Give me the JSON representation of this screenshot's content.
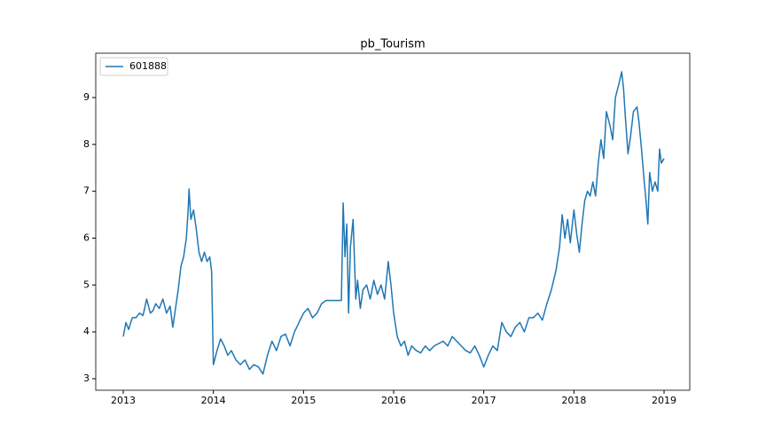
{
  "chart_data": {
    "type": "line",
    "title": "pb_Tourism",
    "x": [
      2013.0,
      2013.03,
      2013.06,
      2013.1,
      2013.14,
      2013.18,
      2013.22,
      2013.26,
      2013.3,
      2013.33,
      2013.36,
      2013.4,
      2013.44,
      2013.48,
      2013.52,
      2013.55,
      2013.58,
      2013.61,
      2013.64,
      2013.67,
      2013.7,
      2013.72,
      2013.73,
      2013.75,
      2013.78,
      2013.81,
      2013.84,
      2013.87,
      2013.9,
      2013.93,
      2013.96,
      2013.98,
      2014.0,
      2014.04,
      2014.08,
      2014.12,
      2014.16,
      2014.2,
      2014.25,
      2014.3,
      2014.35,
      2014.4,
      2014.45,
      2014.5,
      2014.55,
      2014.6,
      2014.65,
      2014.7,
      2014.75,
      2014.8,
      2014.85,
      2014.9,
      2014.95,
      2015.0,
      2015.05,
      2015.1,
      2015.15,
      2015.2,
      2015.25,
      2015.3,
      2015.35,
      2015.42,
      2015.44,
      2015.46,
      2015.48,
      2015.5,
      2015.52,
      2015.55,
      2015.58,
      2015.6,
      2015.63,
      2015.66,
      2015.7,
      2015.74,
      2015.78,
      2015.82,
      2015.86,
      2015.9,
      2015.94,
      2015.97,
      2016.0,
      2016.04,
      2016.08,
      2016.12,
      2016.16,
      2016.2,
      2016.25,
      2016.3,
      2016.35,
      2016.4,
      2016.45,
      2016.5,
      2016.55,
      2016.6,
      2016.65,
      2016.7,
      2016.75,
      2016.8,
      2016.85,
      2016.9,
      2016.95,
      2017.0,
      2017.05,
      2017.1,
      2017.15,
      2017.2,
      2017.25,
      2017.3,
      2017.35,
      2017.4,
      2017.45,
      2017.5,
      2017.55,
      2017.6,
      2017.65,
      2017.7,
      2017.75,
      2017.8,
      2017.84,
      2017.87,
      2017.9,
      2017.93,
      2017.96,
      2018.0,
      2018.03,
      2018.06,
      2018.09,
      2018.12,
      2018.15,
      2018.18,
      2018.21,
      2018.24,
      2018.27,
      2018.3,
      2018.33,
      2018.36,
      2018.4,
      2018.43,
      2018.46,
      2018.5,
      2018.53,
      2018.55,
      2018.57,
      2018.6,
      2018.63,
      2018.66,
      2018.7,
      2018.72,
      2018.75,
      2018.78,
      2018.8,
      2018.82,
      2018.84,
      2018.87,
      2018.9,
      2018.93,
      2018.95,
      2018.97,
      2019.0
    ],
    "series": [
      {
        "name": "601888",
        "color": "#1f77b4",
        "values": [
          3.9,
          4.2,
          4.05,
          4.3,
          4.3,
          4.4,
          4.35,
          4.7,
          4.4,
          4.45,
          4.6,
          4.5,
          4.7,
          4.4,
          4.55,
          4.1,
          4.5,
          4.9,
          5.4,
          5.6,
          6.0,
          6.6,
          7.05,
          6.4,
          6.6,
          6.2,
          5.7,
          5.5,
          5.7,
          5.5,
          5.6,
          5.3,
          3.3,
          3.6,
          3.85,
          3.7,
          3.5,
          3.6,
          3.4,
          3.3,
          3.4,
          3.2,
          3.3,
          3.25,
          3.1,
          3.5,
          3.8,
          3.6,
          3.9,
          3.95,
          3.7,
          4.0,
          4.2,
          4.4,
          4.5,
          4.3,
          4.4,
          4.6,
          4.67,
          4.67,
          4.67,
          4.67,
          6.75,
          5.6,
          6.3,
          4.4,
          5.8,
          6.4,
          4.7,
          5.1,
          4.5,
          4.9,
          5.0,
          4.7,
          5.1,
          4.8,
          5.0,
          4.7,
          5.5,
          5.0,
          4.4,
          3.9,
          3.7,
          3.8,
          3.5,
          3.7,
          3.6,
          3.55,
          3.7,
          3.6,
          3.7,
          3.75,
          3.8,
          3.7,
          3.9,
          3.8,
          3.7,
          3.6,
          3.55,
          3.7,
          3.5,
          3.25,
          3.5,
          3.7,
          3.6,
          4.2,
          4.0,
          3.9,
          4.1,
          4.2,
          4.0,
          4.3,
          4.3,
          4.4,
          4.25,
          4.6,
          4.9,
          5.3,
          5.8,
          6.5,
          6.0,
          6.4,
          5.9,
          6.6,
          6.1,
          5.7,
          6.3,
          6.8,
          7.0,
          6.9,
          7.2,
          6.9,
          7.6,
          8.1,
          7.7,
          8.7,
          8.4,
          8.1,
          9.0,
          9.3,
          9.55,
          9.2,
          8.6,
          7.8,
          8.2,
          8.7,
          8.8,
          8.5,
          7.9,
          7.2,
          6.8,
          6.3,
          7.4,
          7.0,
          7.2,
          7.0,
          7.9,
          7.6,
          7.7
        ]
      }
    ],
    "xlim": [
      2012.695,
      2019.285
    ],
    "ylim": [
      2.754,
      9.946
    ],
    "xticks": [
      2013,
      2014,
      2015,
      2016,
      2017,
      2018,
      2019
    ],
    "yticks": [
      3,
      4,
      5,
      6,
      7,
      8,
      9
    ],
    "legend": "upper left",
    "grid": false
  }
}
